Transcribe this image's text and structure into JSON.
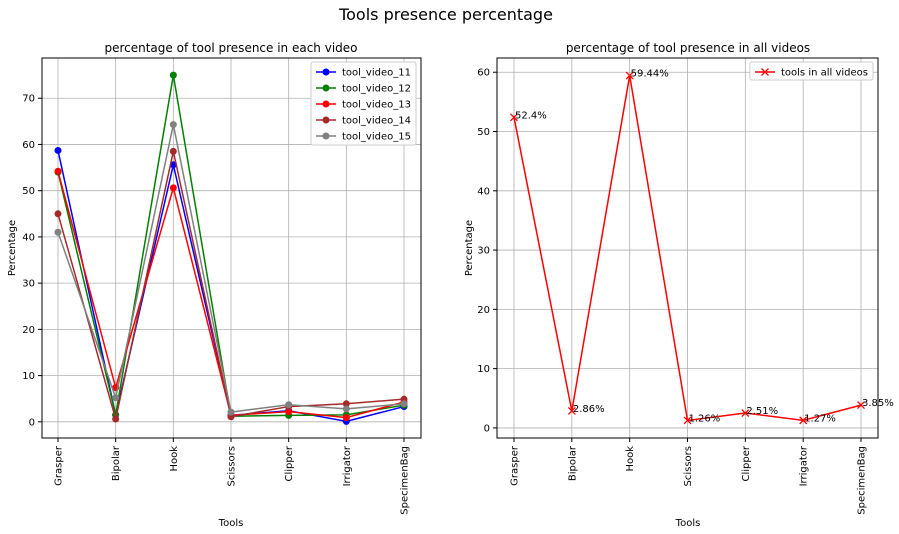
{
  "figure": {
    "suptitle": "Tools presence percentage"
  },
  "chart_data": [
    {
      "type": "line",
      "title": "percentage of tool presence in each video",
      "xlabel": "Tools",
      "ylabel": "Percentage",
      "categories": [
        "Grasper",
        "Bipolar",
        "Hook",
        "Scissors",
        "Clipper",
        "Irrigator",
        "SpecimenBag"
      ],
      "ylim": [
        -3.5,
        78.7
      ],
      "yticks": [
        0,
        10,
        20,
        30,
        40,
        50,
        60,
        70
      ],
      "grid": true,
      "legend_position": "top-right",
      "marker": "circle",
      "series": [
        {
          "name": "tool_video_11",
          "color": "#0000ff",
          "values": [
            58.7,
            1.5,
            55.6,
            1.4,
            2.4,
            0.1,
            3.3
          ]
        },
        {
          "name": "tool_video_12",
          "color": "#008000",
          "values": [
            54.0,
            1.5,
            75.0,
            1.2,
            1.4,
            1.5,
            3.6
          ]
        },
        {
          "name": "tool_video_13",
          "color": "#ff0000",
          "values": [
            54.2,
            7.4,
            50.6,
            1.4,
            2.2,
            0.9,
            4.3
          ]
        },
        {
          "name": "tool_video_14",
          "color": "#a52a2a",
          "values": [
            45.0,
            0.6,
            58.5,
            1.1,
            3.3,
            3.9,
            4.9
          ]
        },
        {
          "name": "tool_video_15",
          "color": "#808080",
          "values": [
            41.0,
            5.2,
            64.3,
            2.1,
            3.7,
            2.8,
            3.9
          ]
        }
      ]
    },
    {
      "type": "line",
      "title": "percentage of tool presence in all videos",
      "xlabel": "Tools",
      "ylabel": "Percentage",
      "categories": [
        "Grasper",
        "Bipolar",
        "Hook",
        "Scissors",
        "Clipper",
        "Irrigator",
        "SpecimenBag"
      ],
      "ylim": [
        -1.7,
        62.4
      ],
      "yticks": [
        0,
        10,
        20,
        30,
        40,
        50,
        60
      ],
      "grid": true,
      "legend_position": "top-right",
      "marker": "x",
      "series": [
        {
          "name": "tools in all videos",
          "color": "#ff0000",
          "values": [
            52.4,
            2.86,
            59.44,
            1.26,
            2.51,
            1.27,
            3.85
          ]
        }
      ],
      "data_labels": [
        "52.4%",
        "2.86%",
        "59.44%",
        "1.26%",
        "2.51%",
        "1.27%",
        "3.85%"
      ]
    }
  ]
}
